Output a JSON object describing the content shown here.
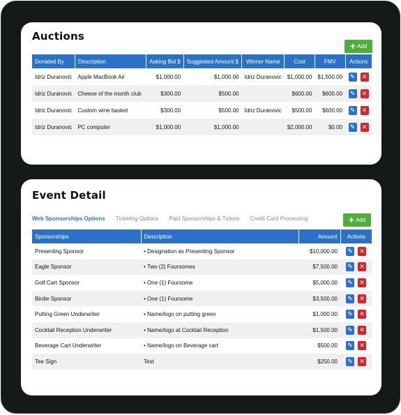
{
  "auctions": {
    "title": "Auctions",
    "add_label": "Add",
    "columns": [
      "Donated By",
      "Description",
      "Asking Bid $",
      "Suggested Amount $",
      "Winner Name",
      "Cost",
      "FMV",
      "Actions"
    ],
    "rows": [
      {
        "donated_by": "Idriz Duranovic",
        "description": "Apple MacBook Air",
        "asking_bid": "$1,000.00",
        "suggested": "$1,000.00",
        "winner": "Idriz Duranovic",
        "cost": "$1,000.00",
        "fmv": "$1,500.00"
      },
      {
        "donated_by": "Idriz Duranovic",
        "description": "Cheese of the month club",
        "asking_bid": "$300.00",
        "suggested": "$500.00",
        "winner": "",
        "cost": "$600.00",
        "fmv": "$600.00"
      },
      {
        "donated_by": "Idriz Duranovic",
        "description": "Custom wine basket",
        "asking_bid": "$300.00",
        "suggested": "$500.00",
        "winner": "Idriz Duranovic",
        "cost": "$500.00",
        "fmv": "$600.00"
      },
      {
        "donated_by": "Idriz Duranovic",
        "description": "PC computer",
        "asking_bid": "$1,000.00",
        "suggested": "$1,000.00",
        "winner": "",
        "cost": "$2,000.00",
        "fmv": "$0.00"
      }
    ]
  },
  "event": {
    "title": "Event Detail",
    "add_label": "Add",
    "tabs": [
      "Web Sponsorships Options",
      "Ticketing Options",
      "Paid Sponsorships & Tickets",
      "Credit Card Processing"
    ],
    "columns": [
      "Sponsorships",
      "Description",
      "Amount",
      "Actions"
    ],
    "rows": [
      {
        "name": "Presenting Sponsor",
        "description": "• Designation as Presenting Sponsor",
        "amount": "$10,000.00"
      },
      {
        "name": "Eagle Sponsor",
        "description": "• Two (2) Foursomes",
        "amount": "$7,500.00"
      },
      {
        "name": "Golf Cart Sponsor",
        "description": "• One (1) Foursome",
        "amount": "$5,000.00"
      },
      {
        "name": "Birdie Sponsor",
        "description": "• One (1) Foursome",
        "amount": "$3,500.00"
      },
      {
        "name": "Putting Green Underwriter",
        "description": "• Name/logo on putting green",
        "amount": "$1,000.00"
      },
      {
        "name": "Cocktail Reception Underwriter",
        "description": "• Name/logo at Cocktail Reception",
        "amount": "$1,500.00"
      },
      {
        "name": "Beverage Cart Underwriter",
        "description": "• Name/logo on Beverage cart",
        "amount": "$500.00"
      },
      {
        "name": "Tee Sign",
        "description": "Test",
        "amount": "$250.00"
      }
    ]
  },
  "icons": {
    "add": "plus-icon",
    "edit": "pencil-icon",
    "delete": "x-icon"
  },
  "colors": {
    "header_blue": "#2a72c9",
    "add_green": "#4caf3a",
    "delete_red": "#d8232a"
  }
}
